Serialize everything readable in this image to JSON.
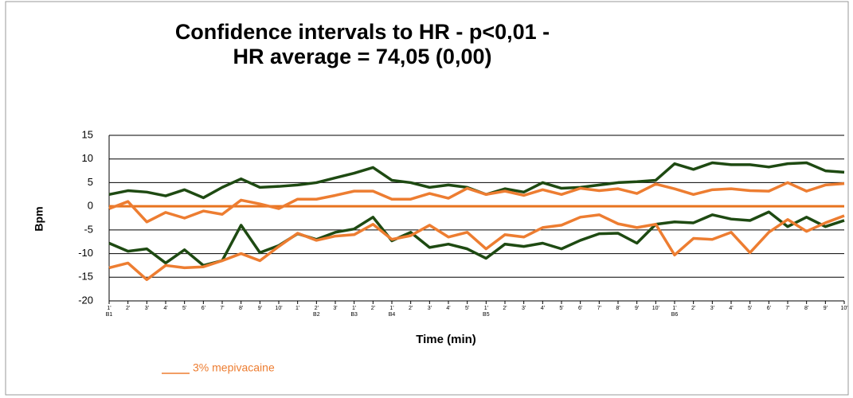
{
  "chart_data": {
    "type": "line",
    "title": "Confidence intervals to HR - p<0,01 -",
    "subtitle": "HR average = 74,05 (0,00)",
    "y_label": "Bpm",
    "x_label": "Time (min)",
    "categories": [
      "1'",
      "2'",
      "3'",
      "4'",
      "5'",
      "6'",
      "7'",
      "8'",
      "9'",
      "10'",
      "1'",
      "2'",
      "3'",
      "1'",
      "2'",
      "1'",
      "2'",
      "3'",
      "4'",
      "5'",
      "1'",
      "2'",
      "3'",
      "4'",
      "5'",
      "6'",
      "7'",
      "8'",
      "9'",
      "10'",
      "1'",
      "2'",
      "3'",
      "4'",
      "5'",
      "6'",
      "7'",
      "8'",
      "9'",
      "10'"
    ],
    "category_groups": [
      "B1",
      null,
      null,
      null,
      null,
      null,
      null,
      null,
      null,
      null,
      null,
      "B2",
      null,
      "B3",
      null,
      "B4",
      null,
      null,
      null,
      null,
      "B5",
      null,
      null,
      null,
      null,
      null,
      null,
      null,
      null,
      null,
      "B6",
      null,
      null,
      null,
      null,
      null,
      null,
      null,
      null,
      null
    ],
    "ylim": [
      -20,
      15
    ],
    "yticks": [
      -20,
      -15,
      -10,
      -5,
      0,
      5,
      10,
      15
    ],
    "grid": true,
    "reference_line": {
      "value": 0,
      "color": "#e8731e"
    },
    "series": [
      {
        "color": "#1e4a12",
        "values": [
          2.5,
          3.3,
          3,
          2.2,
          3.5,
          1.8,
          4,
          5.8,
          4,
          4.2,
          4.5,
          5,
          6,
          7,
          8.2,
          5.5,
          5,
          4,
          4.5,
          4,
          2.5,
          3.7,
          3,
          5,
          3.8,
          4,
          4.5,
          5,
          5.2,
          5.5,
          9,
          7.8,
          9.2,
          8.8,
          8.8,
          8.3,
          9,
          9.2,
          7.5,
          7.2
        ]
      },
      {
        "color": "#1e4a12",
        "values": [
          -7.8,
          -9.5,
          -9,
          -12,
          -9.2,
          -12.5,
          -11.5,
          -4,
          -9.8,
          -8.3,
          -5.8,
          -7,
          -5.5,
          -4.8,
          -2.3,
          -7.3,
          -5.5,
          -8.7,
          -8,
          -9,
          -11,
          -8,
          -8.5,
          -7.8,
          -9,
          -7.2,
          -5.8,
          -5.7,
          -7.8,
          -3.8,
          -3.3,
          -3.5,
          -1.8,
          -2.7,
          -3,
          -1.2,
          -4.3,
          -2.3,
          -4.3,
          -3
        ]
      },
      {
        "name": "3% mepivacaine",
        "color": "#ed7d31",
        "values": [
          -0.5,
          1,
          -3.3,
          -1.3,
          -2.5,
          -1,
          -1.7,
          1.3,
          0.5,
          -0.5,
          1.5,
          1.5,
          2.3,
          3.2,
          3.2,
          1.5,
          1.5,
          2.7,
          1.7,
          3.8,
          2.5,
          3.2,
          2.3,
          3.5,
          2.5,
          3.8,
          3.3,
          3.7,
          2.7,
          4.7,
          3.7,
          2.5,
          3.5,
          3.7,
          3.3,
          3.2,
          5,
          3.2,
          4.5,
          4.8
        ]
      },
      {
        "color": "#ed7d31",
        "values": [
          -13,
          -12,
          -15.5,
          -12.5,
          -13,
          -12.8,
          -11.5,
          -10,
          -11.5,
          -8.5,
          -5.7,
          -7.2,
          -6.3,
          -6,
          -3.8,
          -7,
          -6.2,
          -4,
          -6.5,
          -5.5,
          -9,
          -6,
          -6.5,
          -4.5,
          -4,
          -2.3,
          -1.8,
          -3.7,
          -4.5,
          -3.8,
          -10.3,
          -6.8,
          -7,
          -5.5,
          -9.8,
          -5.5,
          -2.8,
          -5.3,
          -3.5,
          -2
        ]
      }
    ]
  }
}
